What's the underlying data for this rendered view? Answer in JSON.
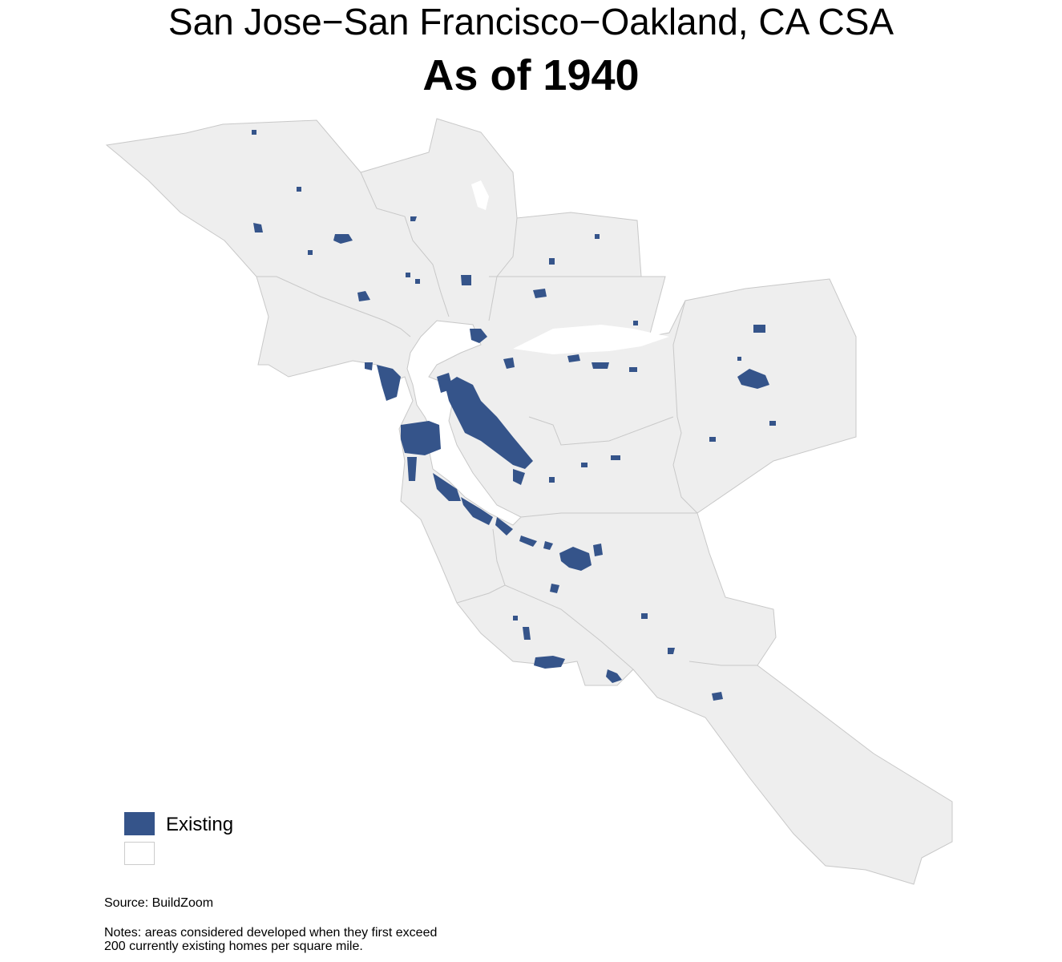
{
  "title": "San Jose−San Francisco−Oakland, CA CSA",
  "subtitle": "As of 1940",
  "legend": {
    "items": [
      {
        "label": "Existing",
        "color": "#35548a"
      },
      {
        "label": "",
        "color": "#ffffff"
      }
    ]
  },
  "colors": {
    "land": "#eeeeee",
    "border": "#c8c8c8",
    "developed": "#35548a"
  },
  "footer": {
    "source": "Source: BuildZoom",
    "notes_line1": "Notes: areas considered developed when they first exceed",
    "notes_line2": "200 currently existing homes per square mile."
  }
}
